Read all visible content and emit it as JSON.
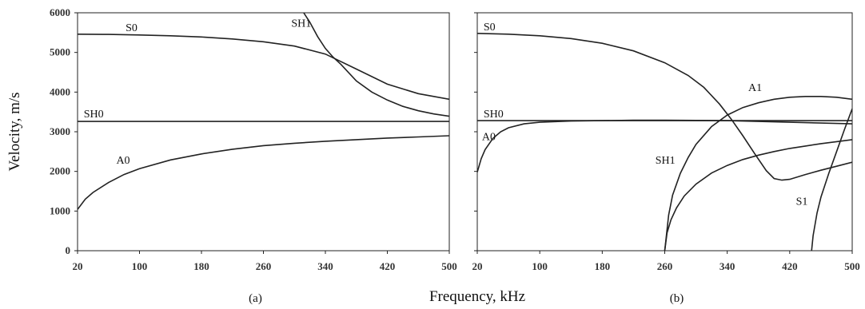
{
  "figure": {
    "ylabel": "Velocity, m/s",
    "xlabel": "Frequency, kHz"
  },
  "chart_data": [
    {
      "type": "line",
      "panel_label": "(a)",
      "xlim": [
        20,
        500
      ],
      "ylim": [
        0,
        6000
      ],
      "x_ticks": [
        20,
        100,
        180,
        260,
        340,
        420,
        500
      ],
      "x_tick_labels": [
        "20",
        "100",
        "180",
        "260",
        "340",
        "420",
        "500"
      ],
      "y_ticks": [
        0,
        1000,
        2000,
        3000,
        4000,
        5000,
        6000
      ],
      "y_tick_labels": [
        "0",
        "1000",
        "2000",
        "3000",
        "4000",
        "5000",
        "6000"
      ],
      "grid": false,
      "series": [
        {
          "name": "S0",
          "label_at": [
            82,
            5540
          ],
          "x": [
            20,
            60,
            100,
            140,
            180,
            220,
            260,
            300,
            340,
            380,
            420,
            460,
            500
          ],
          "y": [
            5460,
            5455,
            5440,
            5420,
            5390,
            5340,
            5270,
            5160,
            4960,
            4580,
            4200,
            3960,
            3820
          ]
        },
        {
          "name": "SH1",
          "label_at": [
            296,
            5650
          ],
          "x": [
            312,
            320,
            330,
            340,
            350,
            360,
            380,
            400,
            420,
            440,
            460,
            480,
            500
          ],
          "y": [
            6000,
            5760,
            5400,
            5100,
            4880,
            4700,
            4280,
            4000,
            3800,
            3640,
            3530,
            3450,
            3390
          ]
        },
        {
          "name": "SH0",
          "label_at": [
            28,
            3360
          ],
          "x": [
            20,
            500
          ],
          "y": [
            3260,
            3260
          ]
        },
        {
          "name": "A0",
          "label_at": [
            70,
            2190
          ],
          "x": [
            20,
            30,
            40,
            60,
            80,
            100,
            140,
            180,
            220,
            260,
            300,
            340,
            380,
            420,
            460,
            500
          ],
          "y": [
            1040,
            1300,
            1470,
            1720,
            1920,
            2070,
            2290,
            2440,
            2560,
            2650,
            2710,
            2760,
            2800,
            2840,
            2870,
            2900
          ]
        }
      ]
    },
    {
      "type": "line",
      "panel_label": "(b)",
      "xlim": [
        20,
        500
      ],
      "ylim": [
        0,
        6000
      ],
      "x_ticks": [
        20,
        100,
        180,
        260,
        340,
        420,
        500
      ],
      "x_tick_labels": [
        "20",
        "100",
        "180",
        "260",
        "340",
        "420",
        "500"
      ],
      "y_ticks": [
        0,
        1000,
        2000,
        3000,
        4000,
        5000,
        6000
      ],
      "grid": false,
      "series": [
        {
          "name": "S0",
          "label_at": [
            28,
            5560
          ],
          "x": [
            20,
            60,
            100,
            140,
            180,
            220,
            260,
            290,
            310,
            330,
            345,
            360,
            375,
            390,
            400,
            410,
            420,
            440,
            460,
            480,
            500
          ],
          "y": [
            5480,
            5460,
            5420,
            5350,
            5230,
            5040,
            4740,
            4420,
            4120,
            3700,
            3320,
            2900,
            2450,
            2020,
            1820,
            1780,
            1800,
            1920,
            2030,
            2130,
            2230
          ]
        },
        {
          "name": "A1",
          "label_at": [
            367,
            4030
          ],
          "x": [
            260,
            265,
            270,
            280,
            290,
            300,
            320,
            340,
            360,
            380,
            400,
            420,
            440,
            460,
            480,
            500
          ],
          "y": [
            0,
            900,
            1400,
            1950,
            2350,
            2680,
            3130,
            3420,
            3610,
            3730,
            3820,
            3870,
            3890,
            3890,
            3870,
            3820
          ]
        },
        {
          "name": "SH0",
          "label_at": [
            28,
            3360
          ],
          "x": [
            20,
            500
          ],
          "y": [
            3280,
            3280
          ]
        },
        {
          "name": "A0",
          "label_at": [
            26,
            2790
          ],
          "x": [
            20,
            25,
            30,
            40,
            50,
            60,
            80,
            100,
            140,
            180,
            220,
            260,
            300,
            340,
            380,
            420,
            460,
            500
          ],
          "y": [
            1980,
            2320,
            2550,
            2830,
            3000,
            3100,
            3200,
            3240,
            3270,
            3280,
            3290,
            3290,
            3285,
            3280,
            3260,
            3240,
            3220,
            3200
          ]
        },
        {
          "name": "SH1",
          "label_at": [
            248,
            2190
          ],
          "x": [
            260,
            263,
            268,
            275,
            285,
            300,
            320,
            340,
            360,
            380,
            400,
            420,
            440,
            460,
            480,
            500
          ],
          "y": [
            0,
            450,
            780,
            1080,
            1380,
            1680,
            1960,
            2150,
            2300,
            2410,
            2500,
            2580,
            2640,
            2700,
            2750,
            2800
          ]
        },
        {
          "name": "S1",
          "label_at": [
            428,
            1160
          ],
          "x": [
            448,
            450,
            455,
            460,
            470,
            480,
            490,
            500
          ],
          "y": [
            0,
            380,
            950,
            1350,
            1950,
            2500,
            3050,
            3580
          ]
        }
      ]
    }
  ]
}
